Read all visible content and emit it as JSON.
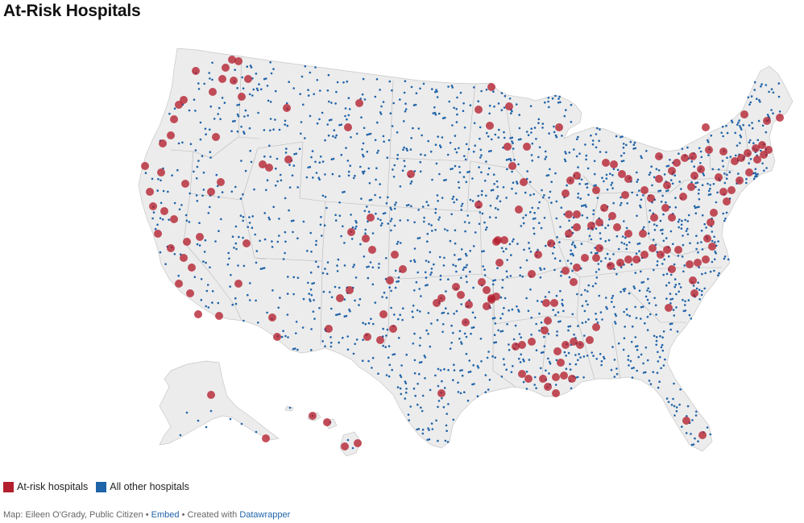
{
  "title": "At-Risk Hospitals",
  "legend": [
    {
      "label": "At-risk hospitals",
      "color": "#b31f2e"
    },
    {
      "label": "All other hospitals",
      "color": "#1f63a8"
    }
  ],
  "footer": {
    "source": "Map: Eileen O'Grady, Public Citizen",
    "sep1": " • ",
    "embed": "Embed",
    "sep2": " • Created with ",
    "tool": "Datawrapper"
  },
  "colors": {
    "land": "#ececec",
    "borders": "#c8c8c8",
    "at_risk": "#b31f2e",
    "other": "#1f63a8"
  }
}
